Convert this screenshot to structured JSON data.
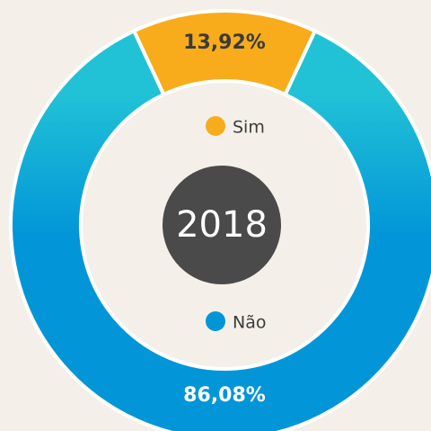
{
  "chart_data": {
    "type": "donut",
    "center_label": "2018",
    "categories": [
      "Sim",
      "Não"
    ],
    "values": [
      13.92,
      86.08
    ],
    "value_labels": [
      "13,92%",
      "86,08%"
    ],
    "colors": [
      "#f8ac1c",
      "#0296d8"
    ],
    "gradient_top": "#22c2d6",
    "legend": "center"
  }
}
